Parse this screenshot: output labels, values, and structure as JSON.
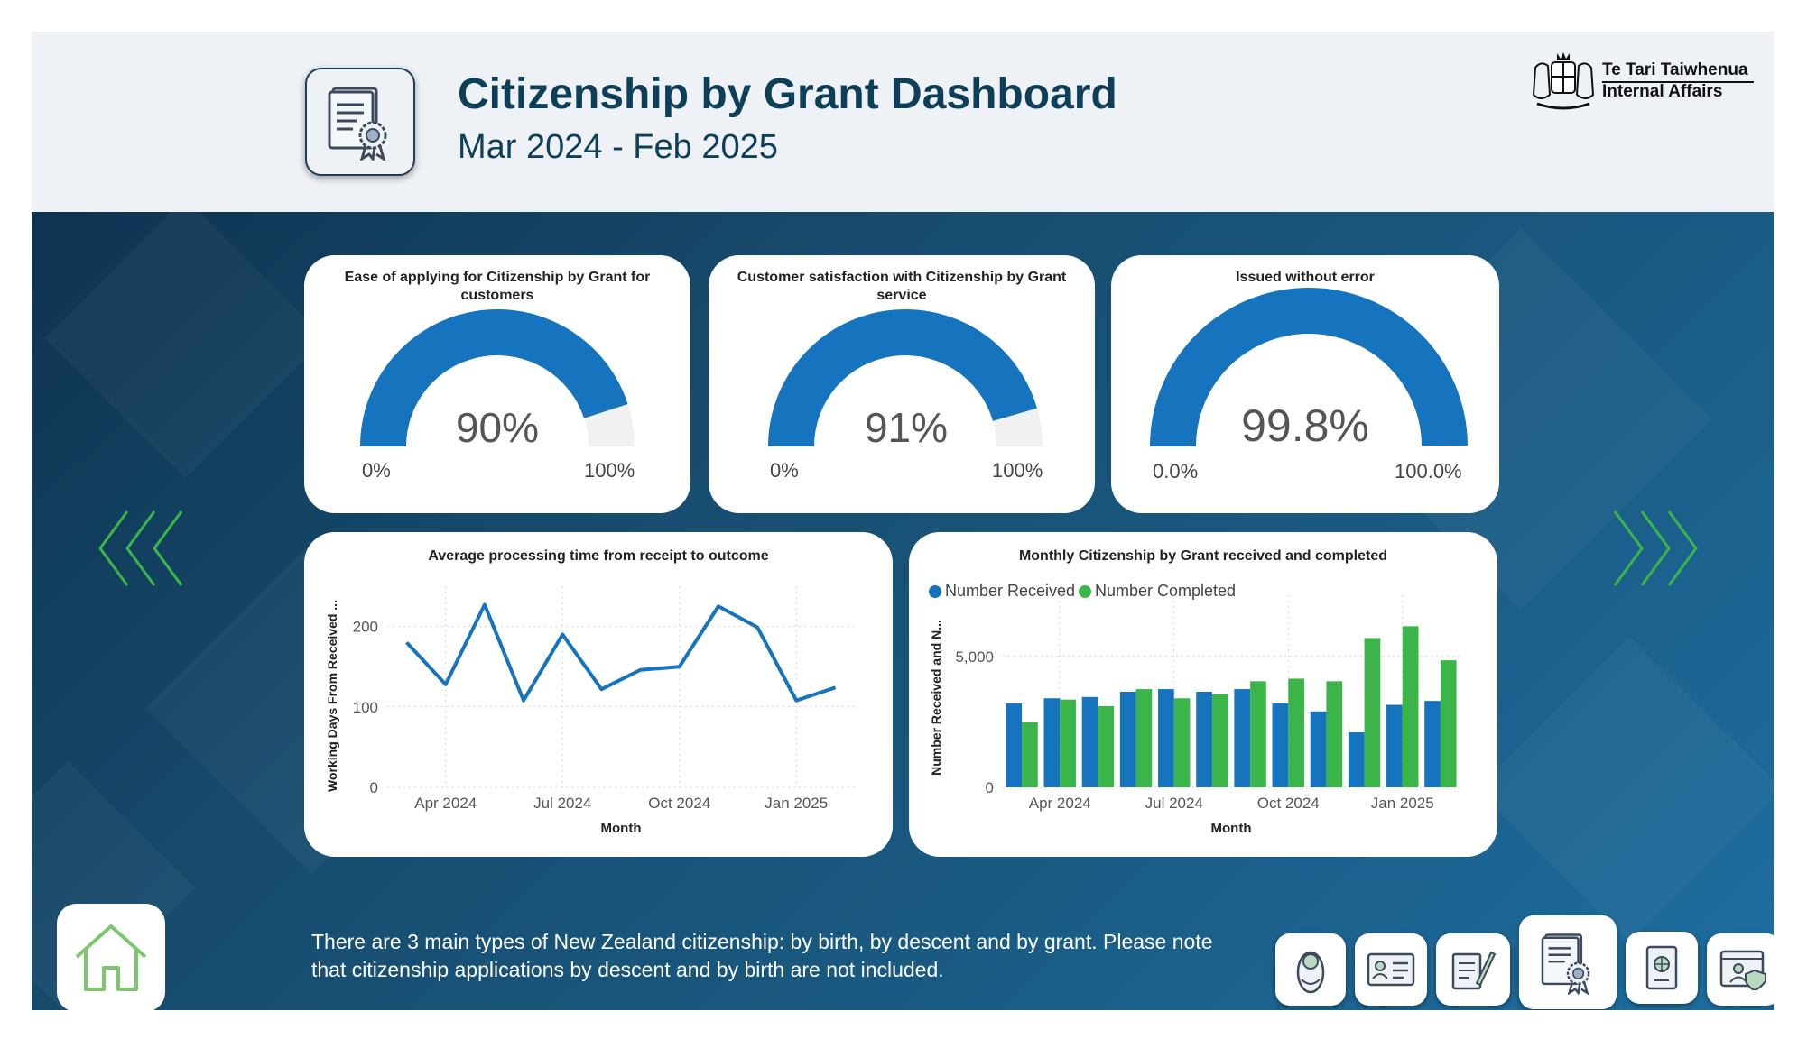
{
  "header": {
    "title": "Citizenship by Grant Dashboard",
    "subtitle": "Mar 2024 - Feb 2025",
    "logo_line1": "Te Tari Taiwhenua",
    "logo_line2": "Internal Affairs"
  },
  "gauges": [
    {
      "title": "Ease of applying for Citizenship by Grant for customers",
      "value_label": "90%",
      "value": 0.9,
      "min_label": "0%",
      "max_label": "100%"
    },
    {
      "title": "Customer satisfaction with Citizenship by Grant service",
      "value_label": "91%",
      "value": 0.91,
      "min_label": "0%",
      "max_label": "100%"
    },
    {
      "title": "Issued without error",
      "value_label": "99.8%",
      "value": 0.998,
      "min_label": "0.0%",
      "max_label": "100.0%"
    }
  ],
  "footnote": "There are 3 main types of New Zealand citizenship: by birth, by descent and by grant. Please note that citizenship applications by descent and by birth are not included.",
  "colors": {
    "blue": "#1574bd",
    "green": "#3bb54a",
    "navy": "#0e3f58",
    "gauge_bg": "#f1f1f1"
  },
  "icons": {
    "home": "home-icon",
    "certificate": "certificate-icon",
    "passport": "passport-icon",
    "id_card": "id-card-icon",
    "document": "document-sign-icon",
    "baby": "baby-icon",
    "profile": "profile-shield-icon"
  },
  "chart_data": [
    {
      "type": "line",
      "title": "Average processing time from receipt to outcome",
      "xlabel": "Month",
      "ylabel": "Working Days From Received ...",
      "x": [
        "2024-03",
        "2024-04",
        "2024-05",
        "2024-06",
        "2024-07",
        "2024-08",
        "2024-09",
        "2024-10",
        "2024-11",
        "2024-12",
        "2025-01",
        "2025-02"
      ],
      "xticks": [
        "Apr 2024",
        "Jul 2024",
        "Oct 2024",
        "Jan 2025"
      ],
      "y": [
        180,
        128,
        227,
        108,
        190,
        122,
        146,
        150,
        225,
        199,
        108,
        124
      ],
      "yticks": [
        "0",
        "100",
        "200"
      ],
      "ylim": [
        0,
        250
      ],
      "grid": true
    },
    {
      "type": "bar",
      "title": "Monthly Citizenship by Grant received and completed",
      "xlabel": "Month",
      "ylabel": "Number Received and N...",
      "categories": [
        "2024-03",
        "2024-04",
        "2024-05",
        "2024-06",
        "2024-07",
        "2024-08",
        "2024-09",
        "2024-10",
        "2024-11",
        "2024-12",
        "2025-01",
        "2025-02"
      ],
      "xticks": [
        "Apr 2024",
        "Jul 2024",
        "Oct 2024",
        "Jan 2025"
      ],
      "series": [
        {
          "name": "Number Received",
          "color": "#1574bd",
          "values": [
            3200,
            3400,
            3450,
            3650,
            3750,
            3650,
            3750,
            3200,
            2900,
            2100,
            3150,
            3300
          ]
        },
        {
          "name": "Number Completed",
          "color": "#3bb54a",
          "values": [
            2500,
            3350,
            3100,
            3750,
            3400,
            3550,
            4050,
            4150,
            4050,
            5700,
            6150,
            4850
          ]
        }
      ],
      "yticks": [
        "0",
        "5,000"
      ],
      "ylim": [
        0,
        6300
      ],
      "legend": "top-left",
      "grid": true
    }
  ]
}
